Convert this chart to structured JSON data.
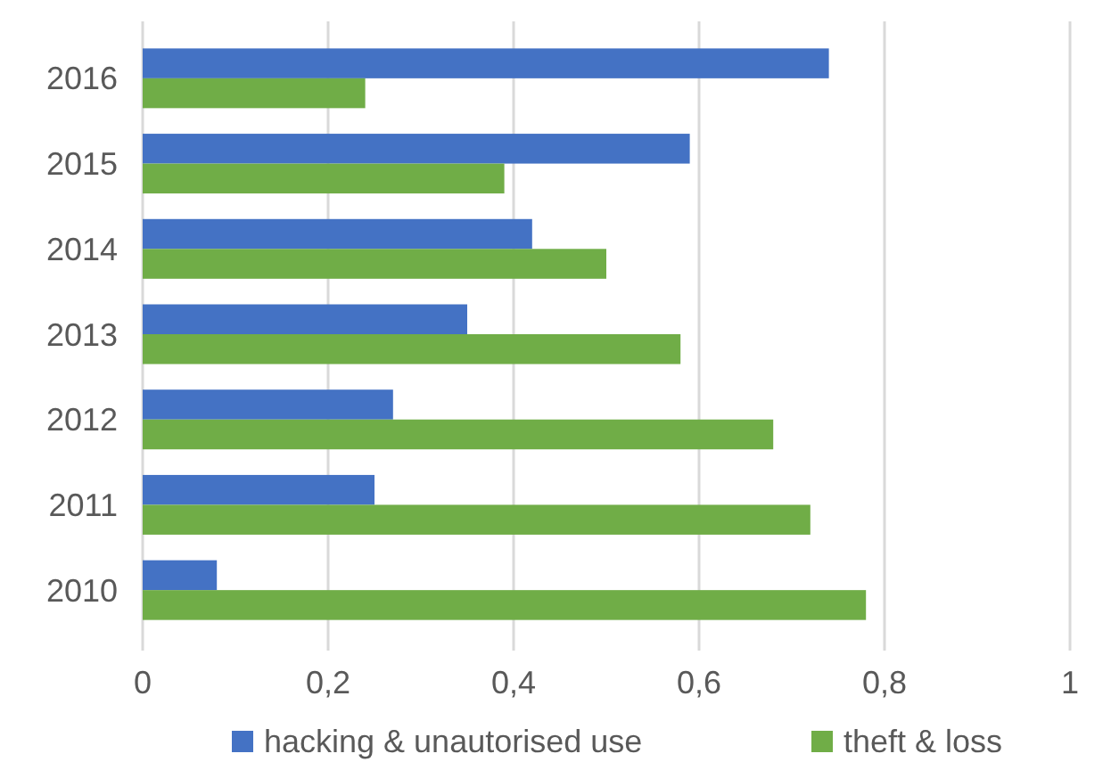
{
  "chart_data": {
    "type": "bar",
    "orientation": "horizontal",
    "categories": [
      "2016",
      "2015",
      "2014",
      "2013",
      "2012",
      "2011",
      "2010"
    ],
    "series": [
      {
        "name": "hacking & unautorised use",
        "color": "#4472c4",
        "values": [
          0.74,
          0.59,
          0.42,
          0.35,
          0.27,
          0.25,
          0.08
        ]
      },
      {
        "name": "theft & loss",
        "color": "#70ad47",
        "values": [
          0.24,
          0.39,
          0.5,
          0.58,
          0.68,
          0.72,
          0.78
        ]
      }
    ],
    "xlim": [
      0,
      1
    ],
    "xticks": [
      0,
      {
        "value": 0.2,
        "label": "0,2"
      },
      {
        "value": 0.4,
        "label": "0,4"
      },
      {
        "value": 0.6,
        "label": "0,6"
      },
      {
        "value": 0.8,
        "label": "0,8"
      },
      1
    ],
    "grid": "x",
    "legend": "bottom"
  }
}
